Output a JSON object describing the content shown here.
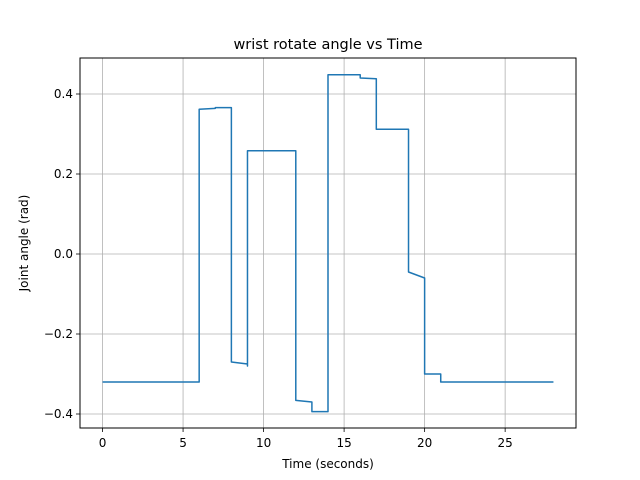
{
  "chart_data": {
    "type": "line",
    "title": "wrist rotate angle vs Time",
    "xlabel": "Time (seconds)",
    "ylabel": "Joint angle (rad)",
    "xlim": [
      -1.4,
      29.4
    ],
    "ylim": [
      -0.435,
      0.49
    ],
    "grid": true,
    "legend": "none",
    "line_color": "#1f77b4",
    "x_ticks": [
      {
        "value": 0,
        "label": "0"
      },
      {
        "value": 5,
        "label": "5"
      },
      {
        "value": 10,
        "label": "10"
      },
      {
        "value": 15,
        "label": "15"
      },
      {
        "value": 20,
        "label": "20"
      },
      {
        "value": 25,
        "label": "25"
      }
    ],
    "y_ticks": [
      {
        "value": -0.4,
        "label": "−0.4"
      },
      {
        "value": -0.2,
        "label": "−0.2"
      },
      {
        "value": 0.0,
        "label": "0.0"
      },
      {
        "value": 0.2,
        "label": "0.2"
      },
      {
        "value": 0.4,
        "label": "0.4"
      }
    ],
    "series": [
      {
        "x": [
          0,
          6,
          6,
          7,
          7,
          7,
          8,
          8,
          9,
          9,
          9,
          12,
          12,
          13,
          13,
          14,
          14,
          16,
          16,
          17,
          17,
          19,
          19,
          20,
          20,
          21,
          21,
          24,
          24,
          28
        ],
        "y": [
          -0.32,
          -0.32,
          0.362,
          0.364,
          0.366,
          0.366,
          0.366,
          -0.27,
          -0.275,
          -0.28,
          0.258,
          0.258,
          -0.366,
          -0.37,
          -0.394,
          -0.394,
          0.448,
          0.448,
          0.44,
          0.438,
          0.312,
          0.312,
          -0.045,
          -0.06,
          -0.3,
          -0.3,
          -0.32,
          -0.32,
          -0.32,
          -0.32
        ]
      }
    ]
  }
}
